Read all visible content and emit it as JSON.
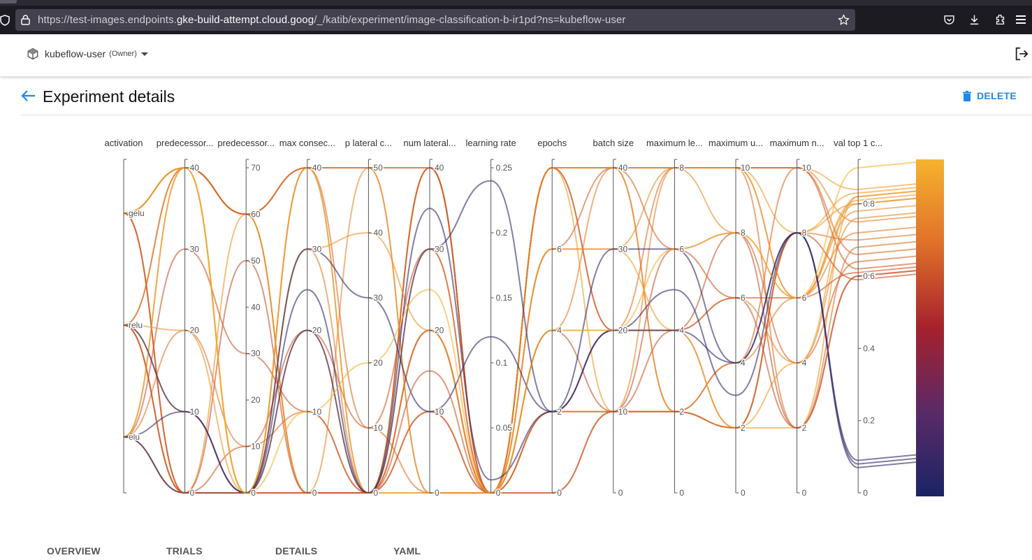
{
  "browser": {
    "url_prefix": "https://test-images.endpoints.",
    "url_domain": "gke-build-attempt.cloud.goog",
    "url_path": "/_/katib/experiment/image-classification-b-ir1pd?ns=kubeflow-user"
  },
  "header": {
    "namespace": "kubeflow-user",
    "role": "(Owner)"
  },
  "page": {
    "title": "Experiment details",
    "delete_label": "DELETE"
  },
  "chart_data": {
    "type": "parallel-coordinates",
    "dimensions": [
      {
        "label": "activation",
        "categories": [
          "gelu",
          "relu",
          "elu"
        ]
      },
      {
        "label": "predecessor...",
        "range": [
          0,
          40
        ],
        "ticks": [
          0,
          10,
          20,
          30,
          40
        ]
      },
      {
        "label": "predecessor...",
        "range": [
          0,
          70
        ],
        "ticks": [
          0,
          10,
          20,
          30,
          40,
          50,
          60,
          70
        ]
      },
      {
        "label": "max consec...",
        "range": [
          0,
          40
        ],
        "ticks": [
          0,
          10,
          20,
          30,
          40
        ]
      },
      {
        "label": "p lateral c...",
        "range": [
          0,
          50
        ],
        "ticks": [
          0,
          10,
          20,
          30,
          40,
          50
        ]
      },
      {
        "label": "num lateral...",
        "range": [
          0,
          40
        ],
        "ticks": [
          0,
          10,
          20,
          30,
          40
        ]
      },
      {
        "label": "learning rate",
        "range": [
          0,
          0.25
        ],
        "ticks": [
          0,
          0.05,
          0.1,
          0.15,
          0.2,
          0.25
        ]
      },
      {
        "label": "epochs",
        "range": [
          0,
          8
        ],
        "ticks": [
          0,
          2,
          4,
          6
        ]
      },
      {
        "label": "batch size",
        "range": [
          0,
          40
        ],
        "ticks": [
          0,
          10,
          20,
          30,
          40
        ]
      },
      {
        "label": "maximum le...",
        "range": [
          0,
          8
        ],
        "ticks": [
          0,
          2,
          4,
          6,
          8
        ]
      },
      {
        "label": "maximum u...",
        "range": [
          0,
          10
        ],
        "ticks": [
          0,
          2,
          4,
          6,
          8,
          10
        ]
      },
      {
        "label": "maximum n...",
        "range": [
          0,
          10
        ],
        "ticks": [
          0,
          2,
          4,
          6,
          8,
          10
        ]
      },
      {
        "label": "val top 1 c...",
        "range": [
          0,
          0.9
        ],
        "ticks": [
          0,
          0.2,
          0.4,
          0.6,
          0.8
        ]
      }
    ],
    "colorscale": [
      "#1a2466",
      "#5a2a68",
      "#a5212c",
      "#e0702a",
      "#f6b32e"
    ],
    "trials": [
      {
        "v": [
          "gelu",
          40,
          60,
          40,
          50,
          40,
          0,
          8,
          40,
          8,
          10,
          10,
          0.84
        ]
      },
      {
        "v": [
          "gelu",
          40,
          60,
          0,
          0,
          40,
          0,
          8,
          40,
          8,
          10,
          8,
          0.83
        ]
      },
      {
        "v": [
          "relu",
          0,
          0,
          40,
          50,
          0,
          0,
          8,
          10,
          2,
          2,
          2,
          0.82
        ]
      },
      {
        "v": [
          "elu",
          40,
          0,
          0,
          0,
          40,
          0,
          8,
          40,
          8,
          10,
          6,
          0.81
        ]
      },
      {
        "v": [
          "gelu",
          0,
          60,
          0,
          0,
          0,
          0,
          8,
          40,
          2,
          2,
          8,
          0.8
        ]
      },
      {
        "v": [
          "relu",
          40,
          0,
          40,
          0,
          30,
          0,
          6,
          30,
          8,
          8,
          6,
          0.78
        ]
      },
      {
        "v": [
          "elu",
          0,
          0,
          20,
          0,
          20,
          0,
          4,
          20,
          4,
          6,
          4,
          0.76
        ]
      },
      {
        "v": [
          "gelu",
          40,
          60,
          0,
          50,
          0,
          0,
          2,
          10,
          8,
          10,
          10,
          0.75
        ]
      },
      {
        "v": [
          "relu",
          10,
          0,
          30,
          0,
          10,
          0,
          4,
          40,
          2,
          4,
          6,
          0.72
        ]
      },
      {
        "v": [
          "elu",
          20,
          10,
          10,
          0,
          20,
          0,
          2,
          20,
          4,
          2,
          8,
          0.7
        ]
      },
      {
        "v": [
          "gelu",
          0,
          0,
          0,
          0,
          40,
          0,
          8,
          20,
          8,
          10,
          2,
          0.68
        ]
      },
      {
        "v": [
          "relu",
          40,
          60,
          40,
          10,
          0,
          0,
          0,
          10,
          2,
          4,
          10,
          0.66
        ]
      },
      {
        "v": [
          "elu",
          0,
          0,
          0,
          0,
          20,
          0,
          6,
          40,
          6,
          8,
          4,
          0.64
        ]
      },
      {
        "v": [
          "gelu",
          40,
          60,
          40,
          50,
          40,
          0,
          8,
          40,
          8,
          10,
          10,
          0.62
        ]
      },
      {
        "v": [
          "relu",
          0,
          10,
          20,
          10,
          30,
          0,
          2,
          10,
          4,
          6,
          6,
          0.61
        ]
      },
      {
        "v": [
          "elu",
          30,
          30,
          10,
          0,
          40,
          0,
          8,
          20,
          4,
          8,
          2,
          0.6
        ]
      },
      {
        "v": [
          "gelu",
          0,
          50,
          0,
          0,
          10,
          0,
          4,
          10,
          2,
          2,
          8,
          0.59
        ]
      },
      {
        "v": [
          "relu",
          20,
          0,
          30,
          40,
          20,
          0,
          8,
          40,
          8,
          10,
          6,
          0.8
        ]
      },
      {
        "v": [
          "elu",
          40,
          0,
          40,
          0,
          0,
          0,
          6,
          30,
          4,
          2,
          4,
          0.82
        ]
      },
      {
        "v": [
          "relu",
          10,
          0,
          30,
          30,
          10,
          0.12,
          2,
          30,
          6,
          4,
          8,
          0.07
        ]
      },
      {
        "v": [
          "elu",
          0,
          0,
          20,
          0,
          30,
          0.24,
          2,
          20,
          4,
          4,
          8,
          0.08
        ]
      },
      {
        "v": [
          "elu",
          10,
          0,
          25,
          0,
          35,
          0.01,
          2,
          20,
          5,
          3,
          8,
          0.09
        ]
      },
      {
        "v": [
          "relu",
          0,
          0,
          0,
          0,
          15,
          0,
          0,
          10,
          6,
          6,
          2,
          0.6
        ]
      },
      {
        "v": [
          "gelu",
          40,
          0,
          10,
          20,
          25,
          0,
          4,
          20,
          6,
          8,
          6,
          0.9
        ]
      }
    ]
  },
  "tabs": [
    {
      "label": "OVERVIEW"
    },
    {
      "label": "TRIALS"
    },
    {
      "label": "DETAILS"
    },
    {
      "label": "YAML"
    }
  ]
}
